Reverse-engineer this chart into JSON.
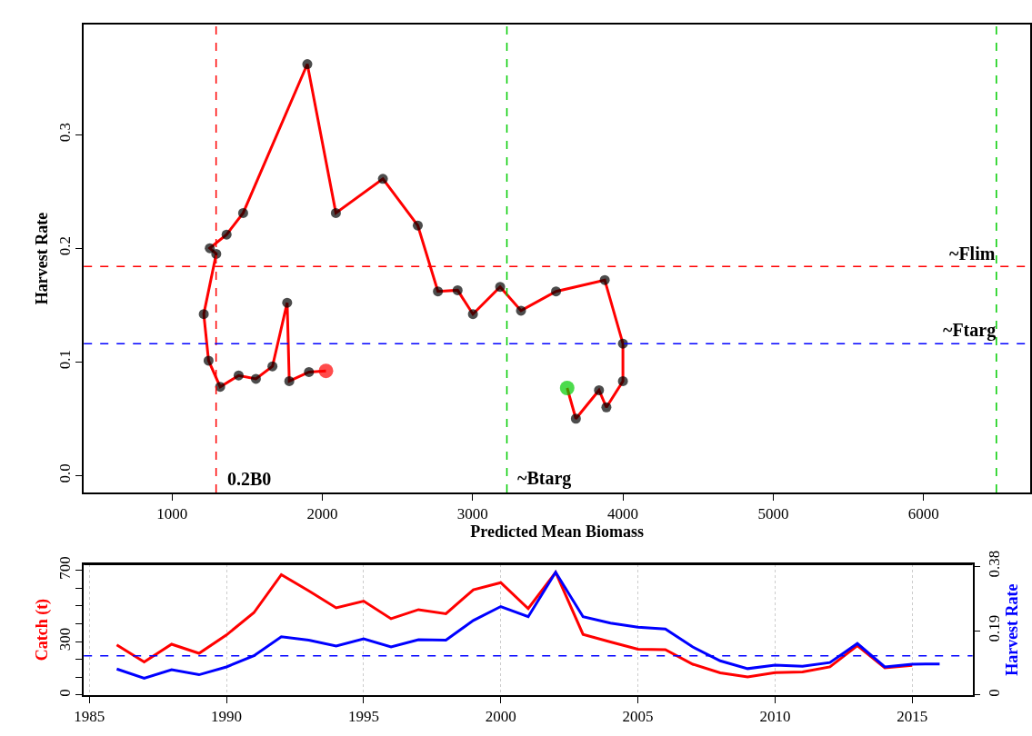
{
  "chart_data": [
    {
      "type": "line",
      "xlabel": "Predicted Mean Biomass",
      "ylabel": "Harvest Rate",
      "xlim": [
        413,
        6710
      ],
      "ylim": [
        -0.015,
        0.397
      ],
      "xticks": [
        1000,
        2000,
        3000,
        4000,
        5000,
        6000
      ],
      "yticks": [
        {
          "value": 0,
          "label": "0.0"
        },
        0.1,
        0.2,
        0.3
      ],
      "marker": "circle",
      "line_style": "solid",
      "series": [
        {
          "color": "#ff0000",
          "x": [
            3629,
            3687,
            3841,
            3890,
            4000,
            4000,
            3879,
            3555,
            3322,
            3183,
            3002,
            2900,
            2769,
            2635,
            2403,
            2090,
            1900,
            1473,
            1363,
            1251,
            1294,
            1211,
            1243,
            1320,
            1443,
            1558,
            1668,
            1766,
            1780,
            1911,
            2024
          ],
          "values": [
            0.077,
            0.05,
            0.075,
            0.06,
            0.083,
            0.116,
            0.172,
            0.162,
            0.145,
            0.166,
            0.142,
            0.163,
            0.162,
            0.22,
            0.261,
            0.231,
            0.362,
            0.231,
            0.212,
            0.2,
            0.195,
            0.142,
            0.101,
            0.078,
            0.088,
            0.085,
            0.096,
            0.152,
            0.083,
            0.091,
            0.092
          ],
          "colors": [
            "#00cc00",
            "#000000",
            "#000000",
            "#000000",
            "#000000",
            "#000000",
            "#000000",
            "#000000",
            "#000000",
            "#000000",
            "#000000",
            "#000000",
            "#000000",
            "#000000",
            "#000000",
            "#000000",
            "#000000",
            "#000000",
            "#000000",
            "#000000",
            "#000000",
            "#000000",
            "#000000",
            "#000000",
            "#000000",
            "#000000",
            "#000000",
            "#000000",
            "#000000",
            "#000000",
            "#ff0000"
          ]
        }
      ],
      "ref_lines": [
        {
          "axis": "x",
          "value": 1293,
          "label": "0.2B0",
          "color": "#ff0000",
          "line_style": "dashed"
        },
        {
          "axis": "x",
          "value": 3228,
          "label": "~Btarg",
          "color": "#00cc00",
          "line_style": "dashed"
        },
        {
          "axis": "x",
          "value": 6485,
          "color": "#00cc00",
          "line_style": "dashed"
        },
        {
          "axis": "y",
          "value": 0.184,
          "label": "~Flim",
          "color": "#ff0000",
          "line_style": "dashed"
        },
        {
          "axis": "y",
          "value": 0.116,
          "label": "~Ftarg",
          "color": "#0000ff",
          "line_style": "dashed"
        }
      ]
    },
    {
      "type": "line",
      "ylabel": "Catch (t)",
      "y2label": "Harvest Rate",
      "x": [
        1986,
        1987,
        1988,
        1989,
        1990,
        1991,
        1992,
        1993,
        1994,
        1995,
        1996,
        1997,
        1998,
        1999,
        2000,
        2001,
        2002,
        2003,
        2004,
        2005,
        2006,
        2007,
        2008,
        2009,
        2010,
        2011,
        2012,
        2013,
        2014,
        2015,
        2016
      ],
      "xlim": [
        1984.8,
        2017.2
      ],
      "ylim": [
        0,
        732
      ],
      "y2lim": [
        0,
        0.385
      ],
      "xticks": [
        1985,
        1990,
        1995,
        2000,
        2005,
        2010,
        2015
      ],
      "yticks": [
        0,
        {
          "value": 100,
          "label": null
        },
        {
          "value": 200,
          "label": null
        },
        300,
        {
          "value": 400,
          "label": null
        },
        {
          "value": 500,
          "label": null
        },
        {
          "value": 600,
          "label": null
        },
        700
      ],
      "y2ticks": [
        0,
        0.19,
        0.38
      ],
      "grid": "x",
      "line_style": "solid",
      "series": [
        {
          "color": "#ff0000",
          "axis": "y",
          "values": [
            281,
            186,
            285,
            234,
            337,
            462,
            675,
            584,
            489,
            527,
            428,
            479,
            456,
            590,
            630,
            485,
            688,
            340,
            298,
            257,
            255,
            173,
            125,
            102,
            126,
            130,
            158,
            277,
            153,
            167,
            null
          ]
        },
        {
          "color": "#0000ff",
          "axis": "y2",
          "values": [
            0.077,
            0.05,
            0.075,
            0.06,
            0.083,
            0.116,
            0.172,
            0.162,
            0.145,
            0.166,
            0.142,
            0.163,
            0.162,
            0.22,
            0.261,
            0.231,
            0.362,
            0.231,
            0.212,
            0.2,
            0.195,
            0.142,
            0.101,
            0.078,
            0.088,
            0.085,
            0.096,
            0.152,
            0.083,
            0.091,
            0.092
          ]
        }
      ],
      "ref_lines": [
        {
          "axis": "y2",
          "value": 0.116,
          "color": "#0000ff",
          "line_style": "dashed"
        }
      ]
    }
  ]
}
